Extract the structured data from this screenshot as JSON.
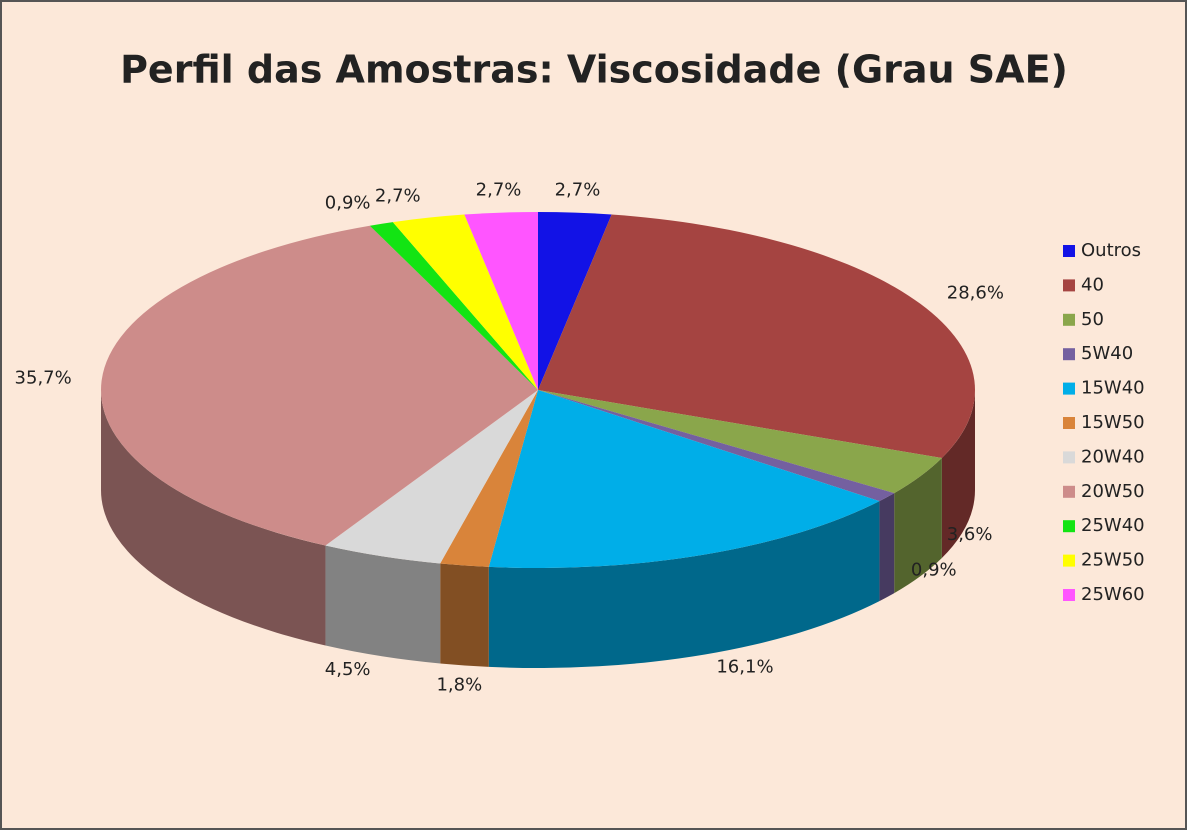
{
  "chart_data": {
    "type": "pie3d",
    "title": "Perfil das Amostras: Viscosidade (Grau SAE)",
    "categories": [
      "Outros",
      "40",
      "50",
      "5W40",
      "15W40",
      "15W50",
      "20W40",
      "20W50",
      "25W40",
      "25W50",
      "25W60"
    ],
    "values": [
      2.7,
      28.6,
      3.6,
      0.9,
      16.1,
      1.8,
      4.5,
      35.7,
      0.9,
      2.7,
      2.7
    ],
    "value_labels": [
      "2,7%",
      "28,6%",
      "3,6%",
      "0,9%",
      "16,1%",
      "1,8%",
      "4,5%",
      "35,7%",
      "0,9%",
      "2,7%",
      "2,7%"
    ],
    "colors": [
      "#1212e6",
      "#a54441",
      "#8aa64b",
      "#7460a0",
      "#00aee8",
      "#d9843a",
      "#d9d9d9",
      "#cd8c8a",
      "#13e413",
      "#ffff00",
      "#ff55ff"
    ],
    "legend": "right"
  }
}
